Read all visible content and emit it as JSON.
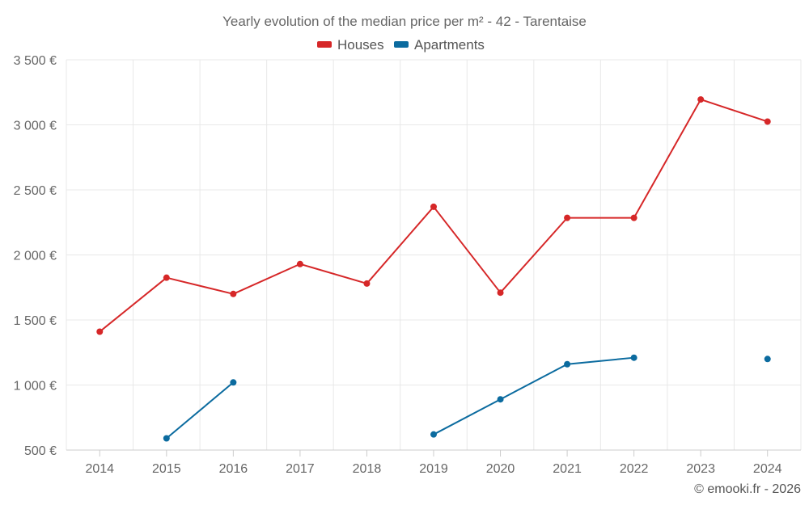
{
  "chart_data": {
    "type": "line",
    "title": "Yearly evolution of the median price per m² - 42 - Tarentaise",
    "categories": [
      "2014",
      "2015",
      "2016",
      "2017",
      "2018",
      "2019",
      "2020",
      "2021",
      "2022",
      "2023",
      "2024"
    ],
    "series": [
      {
        "name": "Houses",
        "color": "#d62728",
        "values": [
          1410,
          1825,
          1700,
          1930,
          1780,
          2370,
          1710,
          2285,
          2285,
          3195,
          3025
        ]
      },
      {
        "name": "Apartments",
        "color": "#0b6b9f",
        "values": [
          null,
          590,
          1020,
          null,
          null,
          620,
          890,
          1160,
          1210,
          null,
          1200
        ]
      }
    ],
    "ylim": [
      500,
      3500
    ],
    "yticks": [
      500,
      1000,
      1500,
      2000,
      2500,
      3000,
      3500
    ],
    "ytick_labels": [
      "500 €",
      "1 000 €",
      "1 500 €",
      "2 000 €",
      "2 500 €",
      "3 000 €",
      "3 500 €"
    ],
    "xlabel": "",
    "ylabel": "",
    "legend": "top-center",
    "grid": true
  },
  "credit": "© emooki.fr - 2026"
}
